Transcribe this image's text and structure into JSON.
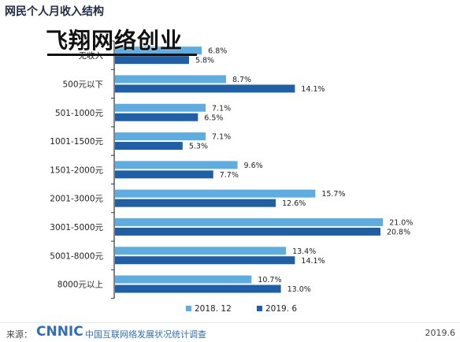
{
  "title": "网民个人月收入结构",
  "overlay_text": "飞翔网络创业",
  "footer": {
    "source_label": "来源：",
    "logo": "CNNIC",
    "org": "中国互联网络发展状况统计调查",
    "date": "2019.6"
  },
  "colors": {
    "series1": "#5dade2",
    "series2": "#1f5fa8",
    "axis": "#333333",
    "text": "#222222"
  },
  "chart_data": {
    "type": "bar",
    "orientation": "horizontal",
    "title": "网民个人月收入结构",
    "categories": [
      "无收入",
      "500元以下",
      "501-1000元",
      "1001-1500元",
      "1501-2000元",
      "2001-3000元",
      "3001-5000元",
      "5001-8000元",
      "8000元以上"
    ],
    "series": [
      {
        "name": "2018. 12",
        "values": [
          6.8,
          8.7,
          7.1,
          7.1,
          9.6,
          15.7,
          21.0,
          13.4,
          10.7
        ],
        "labels": [
          "6.8%",
          "8.7%",
          "7.1%",
          "7.1%",
          "9.6%",
          "15.7%",
          "21.0%",
          "13.4%",
          "10.7%"
        ]
      },
      {
        "name": "2019. 6",
        "values": [
          5.8,
          14.1,
          6.5,
          5.3,
          7.7,
          12.6,
          20.8,
          14.1,
          13.0
        ],
        "labels": [
          "5.8%",
          "14.1%",
          "6.5%",
          "5.3%",
          "7.7%",
          "12.6%",
          "20.8%",
          "14.1%",
          "13.0%"
        ]
      }
    ],
    "xlim": [
      0,
      21
    ],
    "grid": false,
    "legend_position": "bottom"
  }
}
